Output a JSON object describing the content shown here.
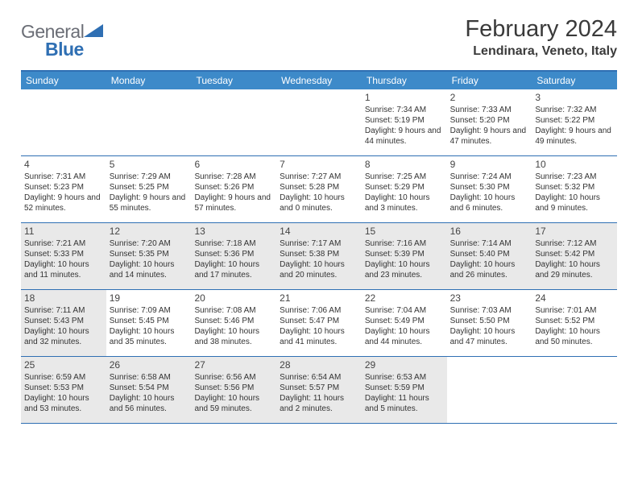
{
  "logo": {
    "part1": "General",
    "part2": "Blue"
  },
  "title": "February 2024",
  "location": "Lendinara, Veneto, Italy",
  "colors": {
    "header_bg": "#3d8ac9",
    "header_text": "#ffffff",
    "border": "#2f6fb3",
    "shaded_cell": "#e9e9e9",
    "body_text": "#333333",
    "logo_gray": "#6b6e76",
    "logo_blue": "#2f6fb3"
  },
  "day_headers": [
    "Sunday",
    "Monday",
    "Tuesday",
    "Wednesday",
    "Thursday",
    "Friday",
    "Saturday"
  ],
  "weeks": [
    [
      {
        "day": "",
        "sunrise": "",
        "sunset": "",
        "daylight": "",
        "shaded": false
      },
      {
        "day": "",
        "sunrise": "",
        "sunset": "",
        "daylight": "",
        "shaded": false
      },
      {
        "day": "",
        "sunrise": "",
        "sunset": "",
        "daylight": "",
        "shaded": false
      },
      {
        "day": "",
        "sunrise": "",
        "sunset": "",
        "daylight": "",
        "shaded": false
      },
      {
        "day": "1",
        "sunrise": "Sunrise: 7:34 AM",
        "sunset": "Sunset: 5:19 PM",
        "daylight": "Daylight: 9 hours and 44 minutes.",
        "shaded": false
      },
      {
        "day": "2",
        "sunrise": "Sunrise: 7:33 AM",
        "sunset": "Sunset: 5:20 PM",
        "daylight": "Daylight: 9 hours and 47 minutes.",
        "shaded": false
      },
      {
        "day": "3",
        "sunrise": "Sunrise: 7:32 AM",
        "sunset": "Sunset: 5:22 PM",
        "daylight": "Daylight: 9 hours and 49 minutes.",
        "shaded": false
      }
    ],
    [
      {
        "day": "4",
        "sunrise": "Sunrise: 7:31 AM",
        "sunset": "Sunset: 5:23 PM",
        "daylight": "Daylight: 9 hours and 52 minutes.",
        "shaded": false
      },
      {
        "day": "5",
        "sunrise": "Sunrise: 7:29 AM",
        "sunset": "Sunset: 5:25 PM",
        "daylight": "Daylight: 9 hours and 55 minutes.",
        "shaded": false
      },
      {
        "day": "6",
        "sunrise": "Sunrise: 7:28 AM",
        "sunset": "Sunset: 5:26 PM",
        "daylight": "Daylight: 9 hours and 57 minutes.",
        "shaded": false
      },
      {
        "day": "7",
        "sunrise": "Sunrise: 7:27 AM",
        "sunset": "Sunset: 5:28 PM",
        "daylight": "Daylight: 10 hours and 0 minutes.",
        "shaded": false
      },
      {
        "day": "8",
        "sunrise": "Sunrise: 7:25 AM",
        "sunset": "Sunset: 5:29 PM",
        "daylight": "Daylight: 10 hours and 3 minutes.",
        "shaded": false
      },
      {
        "day": "9",
        "sunrise": "Sunrise: 7:24 AM",
        "sunset": "Sunset: 5:30 PM",
        "daylight": "Daylight: 10 hours and 6 minutes.",
        "shaded": false
      },
      {
        "day": "10",
        "sunrise": "Sunrise: 7:23 AM",
        "sunset": "Sunset: 5:32 PM",
        "daylight": "Daylight: 10 hours and 9 minutes.",
        "shaded": false
      }
    ],
    [
      {
        "day": "11",
        "sunrise": "Sunrise: 7:21 AM",
        "sunset": "Sunset: 5:33 PM",
        "daylight": "Daylight: 10 hours and 11 minutes.",
        "shaded": true
      },
      {
        "day": "12",
        "sunrise": "Sunrise: 7:20 AM",
        "sunset": "Sunset: 5:35 PM",
        "daylight": "Daylight: 10 hours and 14 minutes.",
        "shaded": true
      },
      {
        "day": "13",
        "sunrise": "Sunrise: 7:18 AM",
        "sunset": "Sunset: 5:36 PM",
        "daylight": "Daylight: 10 hours and 17 minutes.",
        "shaded": true
      },
      {
        "day": "14",
        "sunrise": "Sunrise: 7:17 AM",
        "sunset": "Sunset: 5:38 PM",
        "daylight": "Daylight: 10 hours and 20 minutes.",
        "shaded": true
      },
      {
        "day": "15",
        "sunrise": "Sunrise: 7:16 AM",
        "sunset": "Sunset: 5:39 PM",
        "daylight": "Daylight: 10 hours and 23 minutes.",
        "shaded": true
      },
      {
        "day": "16",
        "sunrise": "Sunrise: 7:14 AM",
        "sunset": "Sunset: 5:40 PM",
        "daylight": "Daylight: 10 hours and 26 minutes.",
        "shaded": true
      },
      {
        "day": "17",
        "sunrise": "Sunrise: 7:12 AM",
        "sunset": "Sunset: 5:42 PM",
        "daylight": "Daylight: 10 hours and 29 minutes.",
        "shaded": true
      }
    ],
    [
      {
        "day": "18",
        "sunrise": "Sunrise: 7:11 AM",
        "sunset": "Sunset: 5:43 PM",
        "daylight": "Daylight: 10 hours and 32 minutes.",
        "shaded": true
      },
      {
        "day": "19",
        "sunrise": "Sunrise: 7:09 AM",
        "sunset": "Sunset: 5:45 PM",
        "daylight": "Daylight: 10 hours and 35 minutes.",
        "shaded": false
      },
      {
        "day": "20",
        "sunrise": "Sunrise: 7:08 AM",
        "sunset": "Sunset: 5:46 PM",
        "daylight": "Daylight: 10 hours and 38 minutes.",
        "shaded": false
      },
      {
        "day": "21",
        "sunrise": "Sunrise: 7:06 AM",
        "sunset": "Sunset: 5:47 PM",
        "daylight": "Daylight: 10 hours and 41 minutes.",
        "shaded": false
      },
      {
        "day": "22",
        "sunrise": "Sunrise: 7:04 AM",
        "sunset": "Sunset: 5:49 PM",
        "daylight": "Daylight: 10 hours and 44 minutes.",
        "shaded": false
      },
      {
        "day": "23",
        "sunrise": "Sunrise: 7:03 AM",
        "sunset": "Sunset: 5:50 PM",
        "daylight": "Daylight: 10 hours and 47 minutes.",
        "shaded": false
      },
      {
        "day": "24",
        "sunrise": "Sunrise: 7:01 AM",
        "sunset": "Sunset: 5:52 PM",
        "daylight": "Daylight: 10 hours and 50 minutes.",
        "shaded": false
      }
    ],
    [
      {
        "day": "25",
        "sunrise": "Sunrise: 6:59 AM",
        "sunset": "Sunset: 5:53 PM",
        "daylight": "Daylight: 10 hours and 53 minutes.",
        "shaded": true
      },
      {
        "day": "26",
        "sunrise": "Sunrise: 6:58 AM",
        "sunset": "Sunset: 5:54 PM",
        "daylight": "Daylight: 10 hours and 56 minutes.",
        "shaded": true
      },
      {
        "day": "27",
        "sunrise": "Sunrise: 6:56 AM",
        "sunset": "Sunset: 5:56 PM",
        "daylight": "Daylight: 10 hours and 59 minutes.",
        "shaded": true
      },
      {
        "day": "28",
        "sunrise": "Sunrise: 6:54 AM",
        "sunset": "Sunset: 5:57 PM",
        "daylight": "Daylight: 11 hours and 2 minutes.",
        "shaded": true
      },
      {
        "day": "29",
        "sunrise": "Sunrise: 6:53 AM",
        "sunset": "Sunset: 5:59 PM",
        "daylight": "Daylight: 11 hours and 5 minutes.",
        "shaded": true
      },
      {
        "day": "",
        "sunrise": "",
        "sunset": "",
        "daylight": "",
        "shaded": false
      },
      {
        "day": "",
        "sunrise": "",
        "sunset": "",
        "daylight": "",
        "shaded": false
      }
    ]
  ]
}
